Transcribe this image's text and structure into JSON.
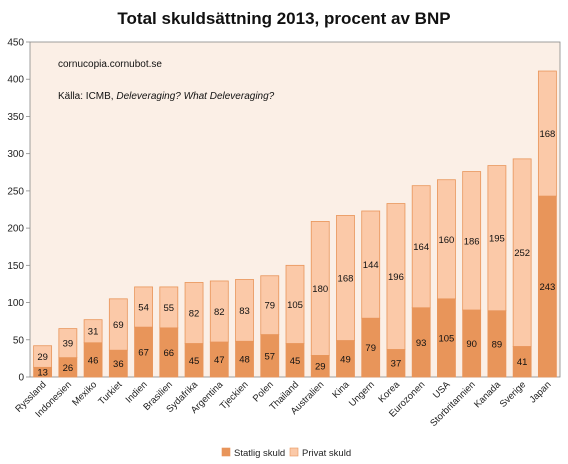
{
  "chart_data": {
    "type": "bar",
    "stacked": true,
    "title": "Total skuldsättning 2013, procent av BNP",
    "xlabel": "",
    "ylabel": "",
    "ylim": [
      0,
      450
    ],
    "yticks": [
      0,
      50,
      100,
      150,
      200,
      250,
      300,
      350,
      400,
      450
    ],
    "grid": false,
    "legend_position": "bottom",
    "annotations": {
      "source_site": "cornucopia.cornubot.se",
      "source_prefix": "Källa: ICMB, ",
      "source_italic": "Deleveraging? What Deleveraging?"
    },
    "categories": [
      "Ryssland",
      "Indonesien",
      "Mexiko",
      "Turkiet",
      "Indien",
      "Brasilien",
      "Sydafrika",
      "Argentina",
      "Tjeckien",
      "Polen",
      "Thailand",
      "Australien",
      "Kina",
      "Ungern",
      "Korea",
      "Eurozonen",
      "USA",
      "Storbritannien",
      "Kanada",
      "Sverige",
      "Japan"
    ],
    "series": [
      {
        "name": "Statlig skuld",
        "color": "#E8955A",
        "values": [
          13,
          26,
          46,
          36,
          67,
          66,
          45,
          47,
          48,
          57,
          45,
          29,
          49,
          79,
          37,
          93,
          105,
          90,
          89,
          41,
          243
        ]
      },
      {
        "name": "Privat skuld",
        "color": "#FBC9A8",
        "values": [
          29,
          39,
          31,
          69,
          54,
          55,
          82,
          82,
          83,
          79,
          105,
          180,
          168,
          144,
          196,
          164,
          160,
          186,
          195,
          252,
          168
        ]
      }
    ],
    "colors": {
      "background": "#FBEFE6",
      "border": "#E8955A",
      "axis": "#888888"
    }
  }
}
